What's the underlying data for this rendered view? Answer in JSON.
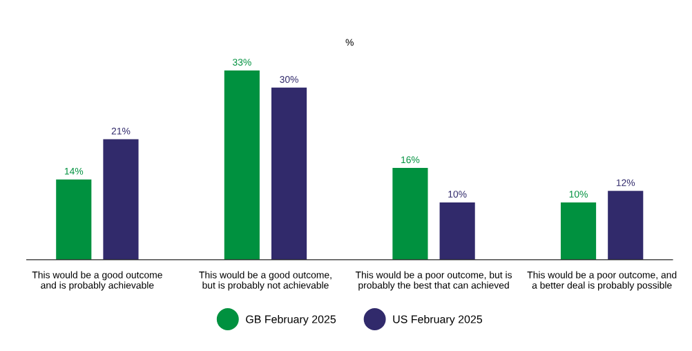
{
  "chart_data": {
    "type": "bar",
    "title": "%",
    "categories": [
      "This would be a good outcome\nand is probably achievable",
      "This would be a good outcome,\nbut is probably not achievable",
      "This would be a poor outcome, but is\nprobably the best that can achieved",
      "This would be a poor outcome, and\na better deal is probably possible"
    ],
    "series": [
      {
        "name": "GB February 2025",
        "color": "#00913f",
        "values": [
          14,
          33,
          16,
          10
        ],
        "value_labels": [
          "14%",
          "33%",
          "16%",
          "10%"
        ]
      },
      {
        "name": "US February 2025",
        "color": "#312a6b",
        "values": [
          21,
          30,
          10,
          12
        ],
        "value_labels": [
          "21%",
          "30%",
          "10%",
          "12%"
        ]
      }
    ],
    "tick_labels": "x",
    "legend": "bottom"
  }
}
